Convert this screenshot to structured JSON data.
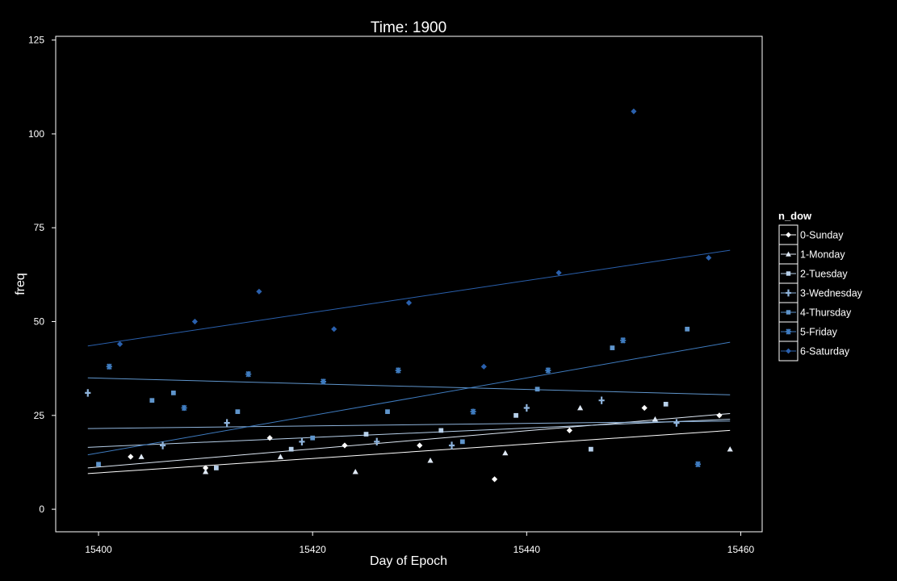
{
  "chart_data": {
    "type": "scatter",
    "title": "Time: 1900",
    "xlabel": "Day of Epoch",
    "ylabel": "freq",
    "xlim": [
      15396,
      15462
    ],
    "ylim": [
      -6,
      126
    ],
    "xticks": [
      15400,
      15420,
      15440,
      15460
    ],
    "yticks": [
      0,
      25,
      50,
      75,
      100,
      125
    ],
    "grid": false,
    "legend": {
      "title": "n_dow",
      "position": "right"
    },
    "series": [
      {
        "name": "0-Sunday",
        "color": "#ffffff",
        "shape": "diamond",
        "points": [
          [
            15403,
            14
          ],
          [
            15410,
            11
          ],
          [
            15416,
            19
          ],
          [
            15423,
            17
          ],
          [
            15430,
            17
          ],
          [
            15437,
            8
          ],
          [
            15444,
            21
          ],
          [
            15451,
            27
          ],
          [
            15458,
            25
          ]
        ],
        "trend": [
          [
            15399,
            9.5
          ],
          [
            15459,
            21
          ]
        ]
      },
      {
        "name": "1-Monday",
        "color": "#dfe9f5",
        "shape": "triangle",
        "points": [
          [
            15404,
            14
          ],
          [
            15410,
            10
          ],
          [
            15417,
            14
          ],
          [
            15424,
            10
          ],
          [
            15431,
            13
          ],
          [
            15438,
            15
          ],
          [
            15445,
            27
          ],
          [
            15452,
            24
          ],
          [
            15459,
            16
          ]
        ],
        "trend": [
          [
            15399,
            11
          ],
          [
            15459,
            25.5
          ]
        ]
      },
      {
        "name": "2-Tuesday",
        "color": "#b7d0ea",
        "shape": "square",
        "points": [
          [
            15411,
            11
          ],
          [
            15418,
            16
          ],
          [
            15425,
            20
          ],
          [
            15432,
            21
          ],
          [
            15439,
            25
          ],
          [
            15446,
            16
          ],
          [
            15453,
            28
          ]
        ],
        "trend": [
          [
            15399,
            16.5
          ],
          [
            15459,
            24
          ]
        ]
      },
      {
        "name": "3-Wednesday",
        "color": "#8fb4dc",
        "shape": "plus",
        "points": [
          [
            15399,
            31
          ],
          [
            15406,
            17
          ],
          [
            15412,
            23
          ],
          [
            15419,
            18
          ],
          [
            15426,
            18
          ],
          [
            15433,
            17
          ],
          [
            15440,
            27
          ],
          [
            15447,
            29
          ],
          [
            15454,
            23
          ]
        ],
        "trend": [
          [
            15399,
            21.5
          ],
          [
            15459,
            23.5
          ]
        ]
      },
      {
        "name": "4-Thursday",
        "color": "#5f95cc",
        "shape": "square",
        "points": [
          [
            15400,
            12
          ],
          [
            15405,
            29
          ],
          [
            15407,
            31
          ],
          [
            15413,
            26
          ],
          [
            15420,
            19
          ],
          [
            15427,
            26
          ],
          [
            15434,
            18
          ],
          [
            15441,
            32
          ],
          [
            15448,
            43
          ],
          [
            15455,
            48
          ]
        ],
        "trend": [
          [
            15399,
            35
          ],
          [
            15459,
            30.5
          ]
        ]
      },
      {
        "name": "5-Friday",
        "color": "#3f7cc0",
        "shape": "asterisk",
        "points": [
          [
            15401,
            38
          ],
          [
            15408,
            27
          ],
          [
            15414,
            36
          ],
          [
            15421,
            34
          ],
          [
            15428,
            37
          ],
          [
            15435,
            26
          ],
          [
            15442,
            37
          ],
          [
            15449,
            45
          ],
          [
            15456,
            12
          ]
        ],
        "trend": [
          [
            15399,
            14.5
          ],
          [
            15459,
            44.5
          ]
        ]
      },
      {
        "name": "6-Saturday",
        "color": "#2a60ad",
        "shape": "diamond",
        "points": [
          [
            15402,
            44
          ],
          [
            15409,
            50
          ],
          [
            15415,
            58
          ],
          [
            15422,
            48
          ],
          [
            15429,
            55
          ],
          [
            15436,
            38
          ],
          [
            15443,
            63
          ],
          [
            15450,
            106
          ],
          [
            15457,
            67
          ]
        ],
        "trend": [
          [
            15399,
            43.5
          ],
          [
            15459,
            69
          ]
        ]
      }
    ]
  }
}
